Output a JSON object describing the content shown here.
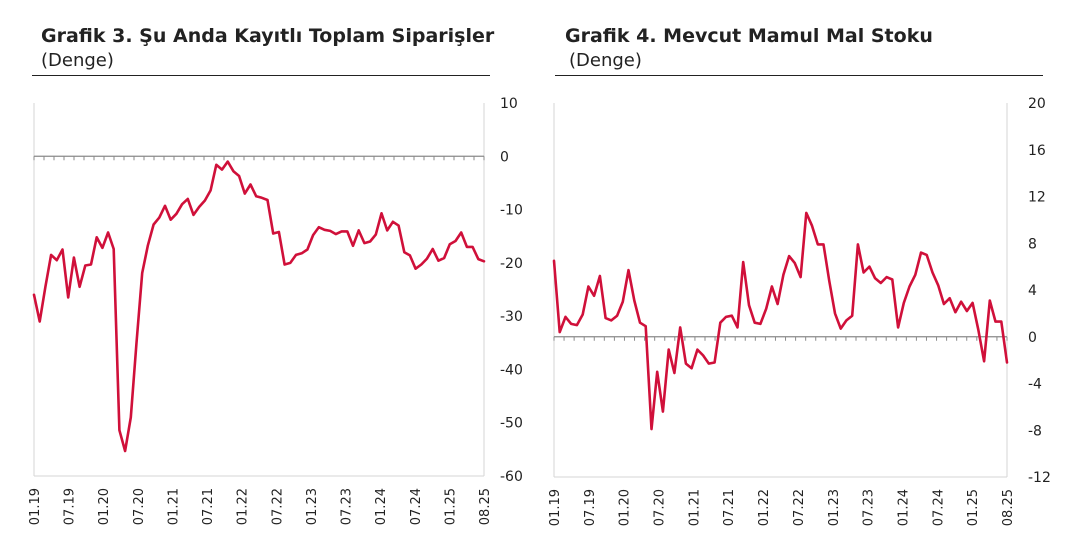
{
  "chart_data": [
    {
      "type": "line",
      "title": "Grafik 3. Şu Anda Kayıtlı Toplam Siparişler",
      "subtitle": "(Denge)",
      "ylim": [
        -60,
        10
      ],
      "yticks": [
        10,
        0,
        -10,
        -20,
        -30,
        -40,
        -50,
        -60
      ],
      "x_tick_labels": [
        "01.19",
        "07.19",
        "01.20",
        "07.20",
        "01.21",
        "07.21",
        "01.22",
        "07.22",
        "01.23",
        "07.23",
        "01.24",
        "07.24",
        "01.25",
        "08.25"
      ],
      "grid": false,
      "color": "#d0103a",
      "series": [
        {
          "values": [
            -26,
            -31,
            -24.5,
            -18.5,
            -19.5,
            -17.5,
            -26.5,
            -19,
            -24.5,
            -20.5,
            -20.3,
            -15.2,
            -17.2,
            -14.3,
            -17.4,
            -51.4,
            -55.3,
            -49,
            -35,
            -21.9,
            -16.7,
            -12.8,
            -11.5,
            -9.3,
            -11.9,
            -10.8,
            -9,
            -8,
            -11,
            -9.5,
            -8.3,
            -6.4,
            -1.6,
            -2.5,
            -1,
            -2.8,
            -3.7,
            -7,
            -5.3,
            -7.5,
            -7.8,
            -8.2,
            -14.5,
            -14.2,
            -20.3,
            -20,
            -18.5,
            -18.2,
            -17.5,
            -14.8,
            -13.3,
            -13.8,
            -14,
            -14.6,
            -14.1,
            -14.1,
            -16.8,
            -13.9,
            -16.3,
            -16,
            -14.7,
            -10.7,
            -13.9,
            -12.3,
            -13,
            -18,
            -18.6,
            -21.1,
            -20.3,
            -19.2,
            -17.4,
            -19.6,
            -19.1,
            -16.5,
            -15.9,
            -14.3,
            -17,
            -17,
            -19.3,
            -19.7
          ]
        }
      ]
    },
    {
      "type": "line",
      "title": "Grafik 4. Mevcut Mamul Mal Stoku",
      "subtitle": "(Denge)",
      "ylim": [
        -12,
        20
      ],
      "yticks": [
        20,
        16,
        12,
        8,
        4,
        0,
        -4,
        -8,
        -12
      ],
      "x_tick_labels": [
        "01.19",
        "07.19",
        "01.20",
        "07.20",
        "01.21",
        "07.21",
        "01.22",
        "07.22",
        "01.23",
        "07.23",
        "01.24",
        "07.24",
        "01.25",
        "08.25"
      ],
      "grid": false,
      "color": "#d0103a",
      "series": [
        {
          "values": [
            6.5,
            0.4,
            1.7,
            1.1,
            1,
            1.9,
            4.3,
            3.5,
            5.2,
            1.6,
            1.4,
            1.8,
            3,
            5.7,
            3.1,
            1.2,
            0.9,
            -7.9,
            -3,
            -6.4,
            -1.1,
            -3.1,
            0.8,
            -2.3,
            -2.7,
            -1.1,
            -1.6,
            -2.3,
            -2.2,
            1.2,
            1.7,
            1.8,
            0.8,
            6.4,
            2.7,
            1.2,
            1.1,
            2.4,
            4.3,
            2.8,
            5.3,
            6.9,
            6.3,
            5.1,
            10.6,
            9.5,
            7.9,
            7.9,
            4.8,
            2,
            0.7,
            1.4,
            1.8,
            7.9,
            5.5,
            6,
            5,
            4.6,
            5.1,
            4.9,
            0.8,
            2.9,
            4.3,
            5.3,
            7.2,
            7,
            5.5,
            4.4,
            2.8,
            3.3,
            2.1,
            3,
            2.2,
            2.9,
            0.6,
            -2.1,
            3.1,
            1.3,
            1.3,
            -2.2
          ]
        }
      ]
    }
  ]
}
